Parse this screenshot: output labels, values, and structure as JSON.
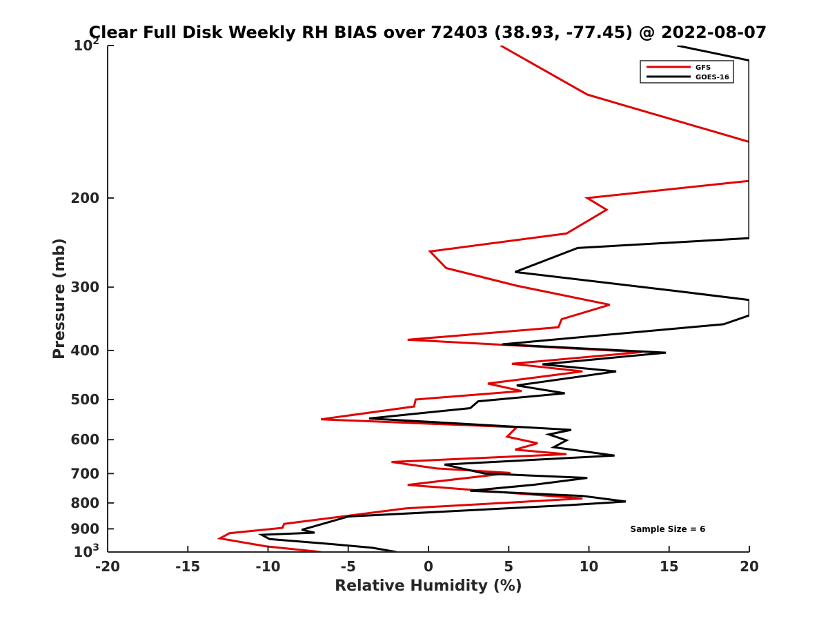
{
  "chart_data": {
    "type": "line",
    "title": "Clear Full Disk Weekly RH BIAS over 72403 (38.93, -77.45) @ 2022-08-07",
    "xlabel": "Relative Humidity (%)",
    "ylabel": "Pressure (mb)",
    "xlim": [
      -20,
      20
    ],
    "ylim": [
      100,
      1000
    ],
    "y_scale": "log",
    "y_reversed": true,
    "grid": false,
    "legend_position": "top-right",
    "x_ticks": [
      -20,
      -15,
      -10,
      -5,
      0,
      5,
      10,
      15,
      20
    ],
    "x_tick_labels": [
      "-20",
      "-15",
      "-10",
      "-5",
      "0",
      "5",
      "10",
      "15",
      "20"
    ],
    "y_ticks": [
      {
        "value": 100,
        "base": "10",
        "exp": "2"
      },
      {
        "value": 200,
        "label": "200"
      },
      {
        "value": 300,
        "label": "300"
      },
      {
        "value": 400,
        "label": "400"
      },
      {
        "value": 500,
        "label": "500"
      },
      {
        "value": 600,
        "label": "600"
      },
      {
        "value": 700,
        "label": "700"
      },
      {
        "value": 800,
        "label": "800"
      },
      {
        "value": 900,
        "label": "900"
      },
      {
        "value": 1000,
        "base": "10",
        "exp": "3"
      }
    ],
    "series": [
      {
        "name": "GFS",
        "color": "#e00000",
        "points": [
          [
            4.5,
            100
          ],
          [
            9.9,
            125
          ],
          [
            20,
            155
          ],
          [
            20,
            185
          ],
          [
            9.9,
            200
          ],
          [
            11.1,
            211
          ],
          [
            8.6,
            235
          ],
          [
            0.1,
            255
          ],
          [
            1.1,
            275
          ],
          [
            5.5,
            298
          ],
          [
            11.3,
            325
          ],
          [
            8.3,
            347
          ],
          [
            8.1,
            360
          ],
          [
            -1.3,
            381
          ],
          [
            13.3,
            403
          ],
          [
            5.2,
            425
          ],
          [
            9.6,
            440
          ],
          [
            3.7,
            465
          ],
          [
            5.8,
            481
          ],
          [
            -0.8,
            500
          ],
          [
            -0.9,
            516
          ],
          [
            -6.7,
            547
          ],
          [
            5.5,
            567
          ],
          [
            4.9,
            592
          ],
          [
            6.8,
            610
          ],
          [
            5.4,
            628
          ],
          [
            8.6,
            641
          ],
          [
            -2.3,
            664
          ],
          [
            0.5,
            684
          ],
          [
            5.1,
            698
          ],
          [
            -1.3,
            737
          ],
          [
            9.6,
            784
          ],
          [
            -1.4,
            820
          ],
          [
            -9.0,
            880
          ],
          [
            -9.1,
            896
          ],
          [
            -12.4,
            918
          ],
          [
            -13.0,
            940
          ],
          [
            -10.1,
            975
          ],
          [
            -6.7,
            1000
          ]
        ]
      },
      {
        "name": "GOES-16",
        "color": "#000000",
        "points": [
          [
            15.5,
            100
          ],
          [
            20,
            107
          ],
          [
            20,
            240
          ],
          [
            9.3,
            251
          ],
          [
            5.4,
            280
          ],
          [
            15.7,
            306
          ],
          [
            20,
            318
          ],
          [
            20,
            341
          ],
          [
            18.4,
            355
          ],
          [
            4.6,
            389
          ],
          [
            14.8,
            404
          ],
          [
            7.1,
            426
          ],
          [
            11.7,
            440
          ],
          [
            5.5,
            469
          ],
          [
            8.5,
            486
          ],
          [
            3.1,
            504
          ],
          [
            2.6,
            520
          ],
          [
            -3.7,
            545
          ],
          [
            8.9,
            574
          ],
          [
            7.5,
            586
          ],
          [
            8.6,
            602
          ],
          [
            7.8,
            621
          ],
          [
            11.6,
            645
          ],
          [
            1.0,
            672
          ],
          [
            3.5,
            700
          ],
          [
            9.9,
            714
          ],
          [
            6.5,
            737
          ],
          [
            2.6,
            757
          ],
          [
            9.6,
            775
          ],
          [
            12.3,
            795
          ],
          [
            8.8,
            808
          ],
          [
            -5.0,
            851
          ],
          [
            -7.4,
            895
          ],
          [
            -7.9,
            904
          ],
          [
            -7.1,
            916
          ],
          [
            -10.4,
            925
          ],
          [
            -9.9,
            943
          ],
          [
            -6.0,
            965
          ],
          [
            -3.5,
            981
          ],
          [
            -2.0,
            1000
          ]
        ]
      }
    ],
    "annotation": "Sample Size = 6"
  }
}
